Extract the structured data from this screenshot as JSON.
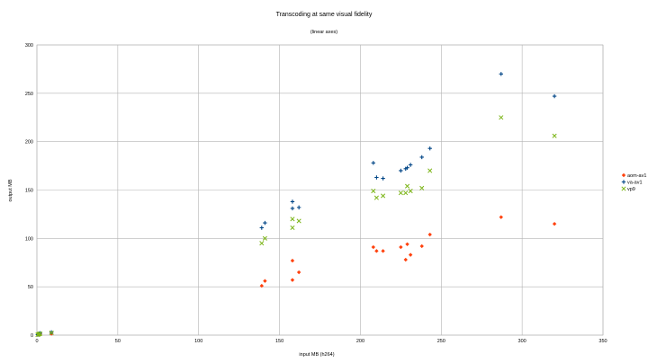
{
  "chart_data": {
    "type": "scatter",
    "title": "Transcoding at same visual fidelity",
    "subtitle": "(linear axes)",
    "xlabel": "input MB (h264)",
    "ylabel": "output MB",
    "xlim": [
      0,
      350
    ],
    "ylim": [
      0,
      300
    ],
    "x_ticks": [
      0,
      50,
      100,
      150,
      200,
      250,
      300,
      350
    ],
    "y_ticks": [
      0,
      50,
      100,
      150,
      200,
      250,
      300
    ],
    "grid": true,
    "legend_position": "right",
    "series": [
      {
        "name": "aom-av1",
        "marker": "diamond",
        "color": "#ff420e",
        "points": [
          [
            0.5,
            0.3
          ],
          [
            1,
            0.6
          ],
          [
            1.5,
            0.8
          ],
          [
            2,
            1.0
          ],
          [
            9,
            1.5
          ],
          [
            139,
            51
          ],
          [
            141,
            56
          ],
          [
            158,
            57
          ],
          [
            158,
            77
          ],
          [
            162,
            65
          ],
          [
            208,
            91
          ],
          [
            210,
            87
          ],
          [
            214,
            87
          ],
          [
            225,
            91
          ],
          [
            228,
            78
          ],
          [
            229,
            94
          ],
          [
            231,
            83
          ],
          [
            238,
            92
          ],
          [
            243,
            104
          ],
          [
            287,
            122
          ],
          [
            320,
            115
          ]
        ]
      },
      {
        "name": "va-av1",
        "marker": "plus",
        "color": "#004586",
        "points": [
          [
            0.5,
            0.5
          ],
          [
            1,
            1.0
          ],
          [
            1.5,
            1.5
          ],
          [
            2,
            2.0
          ],
          [
            9,
            3.0
          ],
          [
            139,
            111
          ],
          [
            141,
            116
          ],
          [
            158,
            131
          ],
          [
            158,
            138
          ],
          [
            162,
            132
          ],
          [
            208,
            178
          ],
          [
            210,
            163
          ],
          [
            214,
            162
          ],
          [
            225,
            170
          ],
          [
            228,
            172
          ],
          [
            229,
            173
          ],
          [
            231,
            176
          ],
          [
            238,
            184
          ],
          [
            243,
            193
          ],
          [
            287,
            270
          ],
          [
            320,
            247
          ]
        ]
      },
      {
        "name": "vp9",
        "marker": "x",
        "color": "#7cb518",
        "points": [
          [
            0.5,
            0.4
          ],
          [
            1,
            0.8
          ],
          [
            1.5,
            1.2
          ],
          [
            2,
            1.6
          ],
          [
            9,
            2.5
          ],
          [
            139,
            95
          ],
          [
            141,
            100
          ],
          [
            158,
            111
          ],
          [
            158,
            120
          ],
          [
            162,
            118
          ],
          [
            208,
            149
          ],
          [
            210,
            142
          ],
          [
            214,
            144
          ],
          [
            225,
            147
          ],
          [
            228,
            147
          ],
          [
            229,
            154
          ],
          [
            231,
            149
          ],
          [
            238,
            152
          ],
          [
            243,
            170
          ],
          [
            287,
            225
          ],
          [
            320,
            206
          ]
        ]
      }
    ]
  }
}
